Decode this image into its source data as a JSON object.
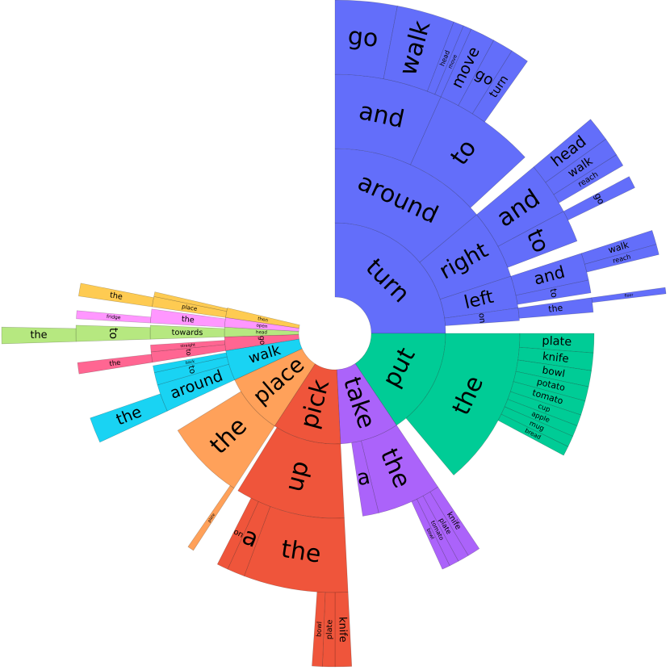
{
  "chart_data": {
    "type": "sunburst",
    "nodes": [
      {
        "name": "turn",
        "value": 25,
        "color": "#636efa",
        "children": [
          {
            "name": "around",
            "value": 13.9,
            "children": [
              {
                "name": "and",
                "value": 6.7,
                "children": [
                  {
                    "name": "go",
                    "value": 3
                  },
                  {
                    "name": "walk",
                    "value": 2.8
                  },
                  {
                    "name": "head",
                    "value": 0.5
                  },
                  {
                    "name": "move",
                    "value": 0.4
                  }
                ]
              },
              {
                "name": "to",
                "value": 6.4,
                "children": [
                  {
                    "name": "move",
                    "value": 1.2
                  },
                  {
                    "name": "go",
                    "value": 1
                  },
                  {
                    "name": "turn",
                    "value": 0.9
                  }
                ]
              }
            ]
          },
          {
            "name": "right",
            "value": 6.1,
            "children": [
              {
                "name": "and",
                "value": 3.3,
                "children": [
                  {
                    "name": "head",
                    "value": 1.2
                  },
                  {
                    "name": "walk",
                    "value": 0.9
                  },
                  {
                    "name": "reach",
                    "value": 0.6
                  }
                ]
              },
              {
                "name": "to",
                "value": 2,
                "children": [
                  {
                    "name": "go",
                    "value": 0.6
                  }
                ]
              }
            ]
          },
          {
            "name": "left",
            "value": 2.8,
            "children": [
              {
                "name": "and",
                "value": 1.7,
                "children": [
                  {
                    "name": "walk",
                    "value": 0.7
                  },
                  {
                    "name": "reach",
                    "value": 0.5
                  }
                ]
              },
              {
                "name": "to",
                "value": 0.8
              }
            ]
          },
          {
            "name": "on",
            "value": 1.1,
            "children": [
              {
                "name": "the",
                "value": 0.9,
                "children": [
                  {
                    "name": "floor",
                    "value": 0.3
                  }
                ]
              }
            ]
          }
        ]
      },
      {
        "name": "put",
        "value": 15.6,
        "color": "#00cc96",
        "children": [
          {
            "name": "the",
            "value": 13.9,
            "children": [
              {
                "name": "plate",
                "value": 1.2
              },
              {
                "name": "knife",
                "value": 1.1
              },
              {
                "name": "bowl",
                "value": 1
              },
              {
                "name": "potato",
                "value": 0.9
              },
              {
                "name": "tomato",
                "value": 0.9
              },
              {
                "name": "cup",
                "value": 0.7
              },
              {
                "name": "apple",
                "value": 0.7
              },
              {
                "name": "mug",
                "value": 0.7
              },
              {
                "name": "bread",
                "value": 0.6
              }
            ]
          }
        ]
      },
      {
        "name": "take",
        "value": 8.6,
        "color": "#ab63fa",
        "children": [
          {
            "name": "the",
            "value": 5.6,
            "children": [
              {
                "name": "knife",
                "value": 0.8
              },
              {
                "name": "plate",
                "value": 0.7
              },
              {
                "name": "tomato",
                "value": 0.6
              },
              {
                "name": "bowl",
                "value": 0.5
              }
            ]
          },
          {
            "name": "a",
            "value": 1.4
          }
        ]
      },
      {
        "name": "pick",
        "value": 10,
        "color": "#ef553b",
        "children": [
          {
            "name": "up",
            "value": 9.6,
            "children": [
              {
                "name": "the",
                "value": 6.5,
                "children": [
                  {
                    "name": "knife",
                    "value": 0.8
                  },
                  {
                    "name": "plate",
                    "value": 0.6
                  },
                  {
                    "name": "bowl",
                    "value": 0.5
                  }
                ]
              },
              {
                "name": "a",
                "value": 1.1
              },
              {
                "name": "on",
                "value": 0.7
              }
            ]
          }
        ]
      },
      {
        "name": "place",
        "value": 8.9,
        "color": "#ffa15a",
        "children": [
          {
            "name": "the",
            "value": 7,
            "children": [
              {
                "name": "plate",
                "value": 0.4
              }
            ]
          }
        ]
      },
      {
        "name": "walk",
        "value": 4.4,
        "color": "#19d3f3",
        "children": [
          {
            "name": "around",
            "value": 2.4,
            "children": [
              {
                "name": "the",
                "value": 1.6
              }
            ]
          },
          {
            "name": "to",
            "value": 1.1
          },
          {
            "name": "back",
            "value": 0.6
          }
        ]
      },
      {
        "name": "go",
        "value": 2,
        "color": "#ff6692",
        "children": [
          {
            "name": "to",
            "value": 0.9,
            "children": [
              {
                "name": "the",
                "value": 0.7
              }
            ]
          },
          {
            "name": "straight",
            "value": 0.6
          }
        ]
      },
      {
        "name": "head",
        "value": 1.4,
        "color": "#b6e880",
        "children": [
          {
            "name": "towards",
            "value": 1.2,
            "children": [
              {
                "name": "to",
                "value": 1,
                "children": [
                  {
                    "name": "the",
                    "value": 0.8
                  }
                ]
              }
            ]
          }
        ]
      },
      {
        "name": "open",
        "value": 1.4,
        "color": "#ff97ff",
        "children": [
          {
            "name": "the",
            "value": 1.2,
            "children": [
              {
                "name": "fridge",
                "value": 0.5
              }
            ]
          }
        ]
      },
      {
        "name": "then",
        "value": 1.4,
        "color": "#fecb52",
        "children": [
          {
            "name": "place",
            "value": 0.9,
            "children": [
              {
                "name": "the",
                "value": 0.8
              }
            ]
          },
          {
            "name": "take",
            "value": 0.4
          }
        ]
      }
    ]
  }
}
